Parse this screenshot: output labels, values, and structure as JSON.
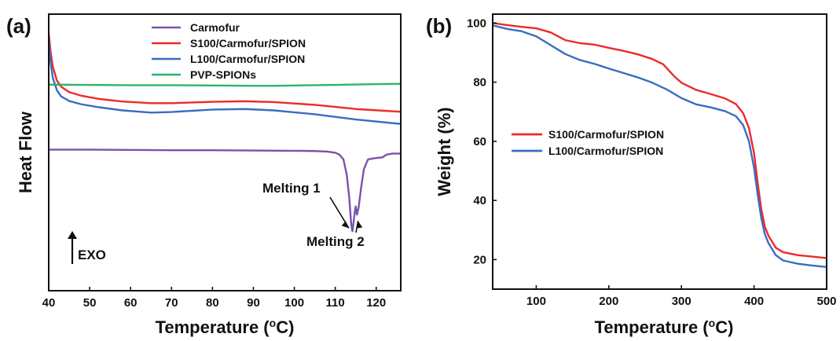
{
  "chart_data": [
    {
      "panel_label": "(a)",
      "type": "line",
      "xlabel": "Temperature (",
      "xlabel_sup": "o",
      "xlabel_tail": "C)",
      "ylabel": "Heat Flow",
      "xlim": [
        40,
        126
      ],
      "ylim": [
        0,
        100
      ],
      "xticks": [
        40,
        50,
        60,
        70,
        80,
        90,
        100,
        110,
        120
      ],
      "y_ticks_shown": false,
      "grid": false,
      "legend_position": "top-center",
      "series": [
        {
          "name": "Carmofur",
          "color": "#7b52ae",
          "x": [
            40,
            50,
            60,
            70,
            80,
            90,
            100,
            105,
            108,
            110,
            111,
            112,
            112.8,
            113.4,
            113.9,
            114.2,
            114.5,
            114.8,
            115.0,
            115.3,
            115.7,
            116.3,
            117,
            118,
            120,
            121.5,
            122.5,
            124,
            126
          ],
          "values": [
            51.0,
            51.0,
            50.9,
            50.8,
            50.8,
            50.7,
            50.6,
            50.5,
            50.3,
            49.9,
            49.2,
            47.5,
            42,
            34,
            24,
            21.5,
            25,
            29,
            30.5,
            27.5,
            30,
            37,
            44,
            47.5,
            48.0,
            48.2,
            49.2,
            49.6,
            49.6
          ]
        },
        {
          "name": "S100/Carmofur/SPION",
          "color": "#ee2a2a",
          "x": [
            40,
            40.5,
            41,
            42,
            43,
            45,
            48,
            52,
            58,
            65,
            70,
            80,
            88,
            95,
            105,
            115,
            126
          ],
          "values": [
            93,
            86,
            81,
            76,
            73.8,
            71.8,
            70.5,
            69.4,
            68.4,
            67.8,
            67.8,
            68.3,
            68.5,
            68.2,
            67.2,
            65.7,
            64.7
          ]
        },
        {
          "name": "L100/Carmofur/SPION",
          "color": "#3a6cc3",
          "x": [
            40,
            40.5,
            41,
            42,
            43,
            45,
            48,
            52,
            58,
            65,
            70,
            80,
            88,
            95,
            105,
            115,
            126
          ],
          "values": [
            91,
            82,
            77,
            72.5,
            70.3,
            68.6,
            67.4,
            66.4,
            65.2,
            64.4,
            64.6,
            65.5,
            65.7,
            65.2,
            63.8,
            61.9,
            60.3
          ]
        },
        {
          "name": "PVP-SPIONs",
          "color": "#2fb36a",
          "x": [
            40,
            50,
            60,
            70,
            80,
            90,
            95,
            100,
            110,
            120,
            126
          ],
          "values": [
            74.5,
            74.4,
            74.3,
            74.3,
            74.2,
            74.1,
            74.1,
            74.2,
            74.4,
            74.7,
            74.8
          ]
        }
      ],
      "annotations": [
        {
          "text": "Melting 1",
          "anchor_x": 113.9,
          "anchor_y": 21.5
        },
        {
          "text": "Melting 2",
          "anchor_x": 115.0,
          "anchor_y": 27.5
        },
        {
          "text": "EXO",
          "arrow": "up"
        }
      ]
    },
    {
      "panel_label": "(b)",
      "type": "line",
      "xlabel": "Temperature (",
      "xlabel_sup": "o",
      "xlabel_tail": "C)",
      "ylabel": "Weight (%)",
      "xlim": [
        40,
        500
      ],
      "ylim": [
        10,
        103
      ],
      "xticks": [
        100,
        200,
        300,
        400,
        500
      ],
      "yticks": [
        20,
        40,
        60,
        80,
        100
      ],
      "grid": false,
      "legend_position": "center-left",
      "series": [
        {
          "name": "S100/Carmofur/SPION",
          "color": "#ee2a2a",
          "x": [
            40,
            60,
            80,
            100,
            120,
            140,
            160,
            180,
            200,
            220,
            240,
            260,
            275,
            290,
            300,
            320,
            340,
            360,
            375,
            385,
            393,
            400,
            405,
            410,
            415,
            420,
            430,
            440,
            460,
            480,
            500
          ],
          "values": [
            100,
            99.3,
            98.7,
            98.2,
            96.8,
            94.2,
            93.2,
            92.7,
            91.6,
            90.6,
            89.4,
            87.8,
            86.0,
            82.0,
            79.8,
            77.4,
            76.0,
            74.5,
            72.6,
            69.5,
            64.5,
            56.0,
            46.0,
            37.0,
            31.0,
            28.0,
            24.0,
            22.5,
            21.5,
            21.0,
            20.5
          ]
        },
        {
          "name": "L100/Carmofur/SPION",
          "color": "#3a6cc3",
          "x": [
            40,
            60,
            80,
            100,
            120,
            140,
            160,
            180,
            200,
            220,
            240,
            260,
            280,
            300,
            320,
            340,
            360,
            375,
            385,
            393,
            400,
            405,
            410,
            415,
            420,
            430,
            440,
            460,
            480,
            500
          ],
          "values": [
            99.2,
            98.0,
            97.2,
            95.5,
            92.5,
            89.5,
            87.5,
            86.2,
            84.6,
            83.1,
            81.6,
            79.8,
            77.5,
            74.6,
            72.5,
            71.5,
            70.2,
            68.5,
            65.5,
            60.0,
            51.0,
            42.0,
            34.0,
            28.5,
            25.5,
            21.5,
            19.7,
            18.6,
            18.0,
            17.5
          ]
        }
      ]
    }
  ]
}
